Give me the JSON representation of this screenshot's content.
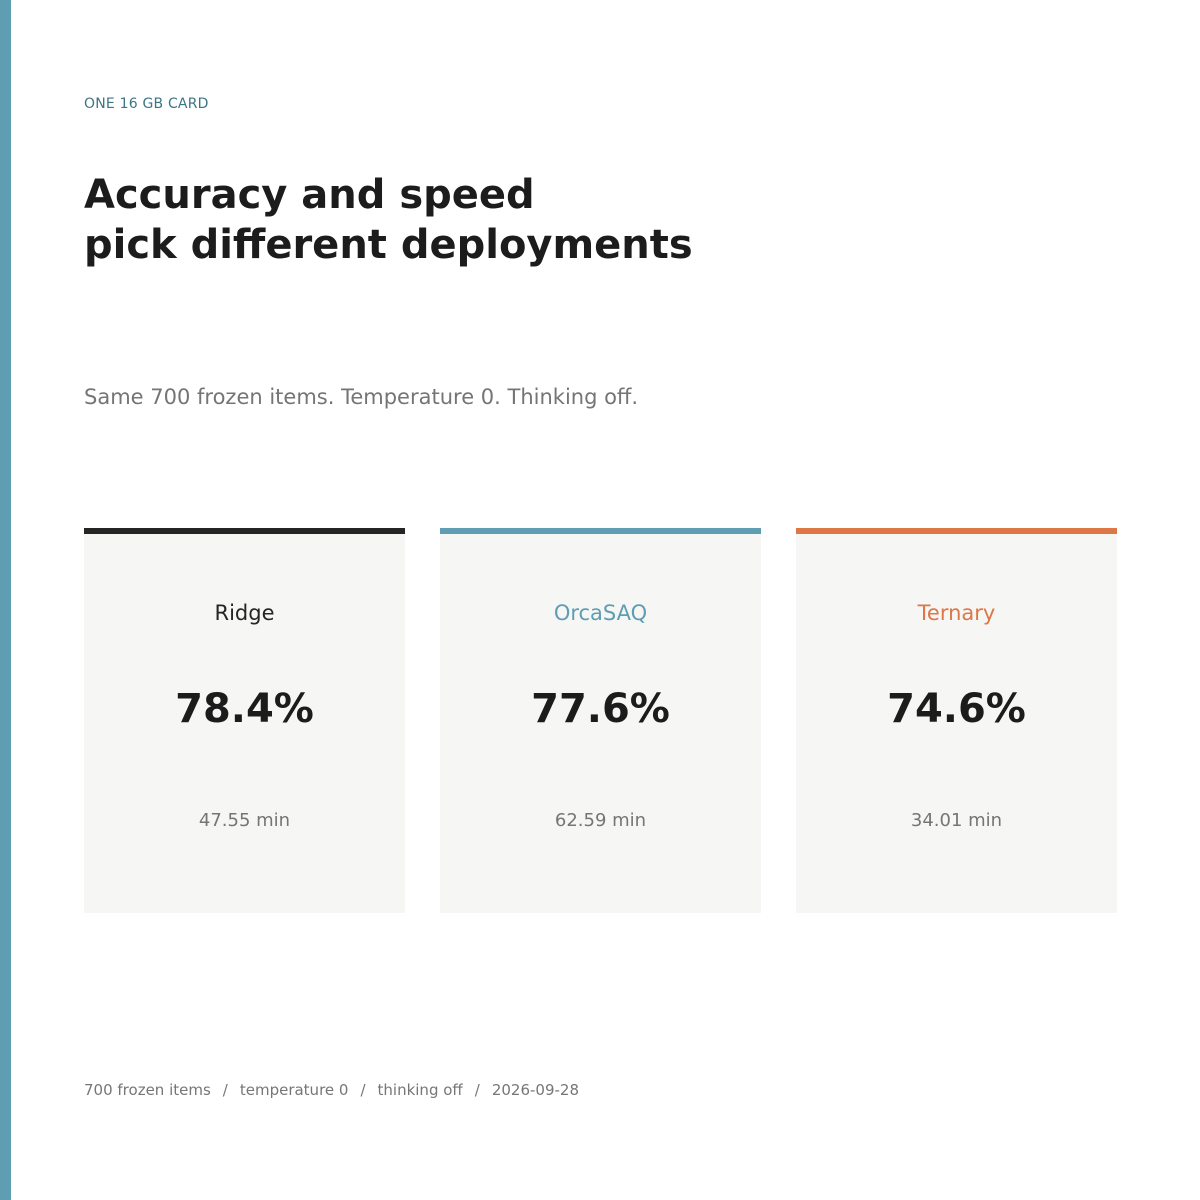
{
  "eyebrow": "ONE 16 GB CARD",
  "headline": {
    "line1": "Accuracy and speed",
    "line2": "pick different deployments"
  },
  "subtitle": "Same 700 frozen items. Temperature 0. Thinking off.",
  "colors": {
    "accent": "#5f9db2",
    "ridge": "#252525",
    "orcasaq": "#5f9db2",
    "ternary": "#dd7745",
    "card_bg": "#f6f6f4"
  },
  "cards": [
    {
      "name": "Ridge",
      "accuracy": "78.4%",
      "time": "47.55 min",
      "color": "#252525"
    },
    {
      "name": "OrcaSAQ",
      "accuracy": "77.6%",
      "time": "62.59 min",
      "color": "#5f9db2"
    },
    {
      "name": "Ternary",
      "accuracy": "74.6%",
      "time": "34.01 min",
      "color": "#dd7745"
    }
  ],
  "footer": {
    "items": [
      "700 frozen items",
      "temperature 0",
      "thinking off",
      "2026-09-28"
    ],
    "separator": "/"
  }
}
